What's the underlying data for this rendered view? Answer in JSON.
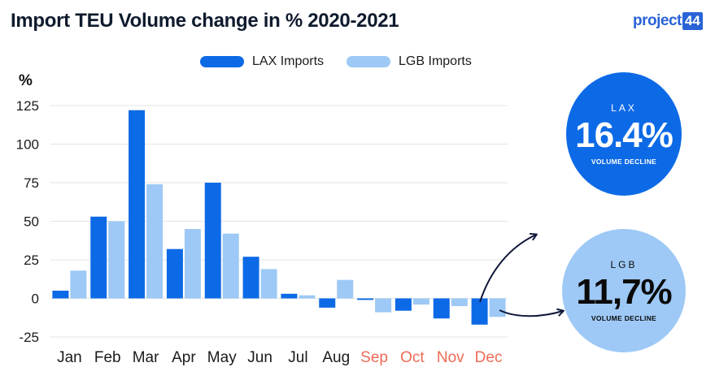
{
  "header": {
    "title": "Import TEU Volume change in % 2020-2021",
    "logo_text": "project",
    "logo_badge": "44"
  },
  "colors": {
    "lax": "#0d6ae6",
    "lgb": "#9ec9f6",
    "highlight_month": "#ef6a57",
    "normal_month": "#1b1b1b",
    "grid": "#e3e3e3"
  },
  "chart_data": {
    "type": "bar",
    "ylabel": "%",
    "ylim": [
      -25,
      125
    ],
    "yticks": [
      125,
      100,
      75,
      50,
      25,
      0,
      -25
    ],
    "grid": true,
    "legend_position": "top",
    "categories": [
      "Jan",
      "Feb",
      "Mar",
      "Apr",
      "May",
      "Jun",
      "Jul",
      "Aug",
      "Sep",
      "Oct",
      "Nov",
      "Dec"
    ],
    "highlighted_categories": [
      "Sep",
      "Oct",
      "Nov",
      "Dec"
    ],
    "series": [
      {
        "name": "LAX Imports",
        "values": [
          5,
          53,
          122,
          32,
          75,
          27,
          3,
          -6,
          -1,
          -8,
          -13,
          -17
        ]
      },
      {
        "name": "LGB Imports",
        "values": [
          18,
          50,
          74,
          45,
          42,
          19,
          2,
          12,
          -9,
          -4,
          -5,
          -12
        ]
      }
    ]
  },
  "callouts": {
    "lax": {
      "name": "LAX",
      "value": "16.4%",
      "desc": "VOLUME DECLINE"
    },
    "lgb": {
      "name": "LGB",
      "value": "11,7%",
      "desc": "VOLUME DECLINE"
    }
  }
}
